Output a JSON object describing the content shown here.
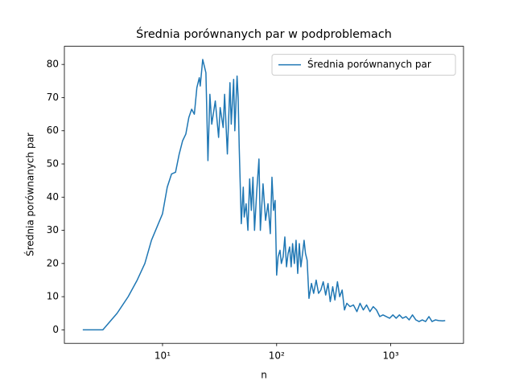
{
  "chart_data": {
    "type": "line",
    "title": "Średnia porównanych par w podproblemach",
    "x_label": "n",
    "y_label": "Średnia porównanych par",
    "x": [
      2,
      3,
      4,
      5,
      6,
      7,
      8,
      10,
      11,
      12,
      13,
      14,
      15,
      16,
      17,
      18,
      19,
      20,
      21,
      21.4,
      22.5,
      24,
      25,
      26,
      27,
      29,
      31,
      32,
      34,
      35,
      37,
      39,
      40,
      42,
      43,
      45,
      46,
      47,
      49,
      51,
      52,
      54,
      56,
      58,
      60,
      62,
      64,
      67,
      70,
      72,
      76,
      80,
      84,
      88,
      91,
      94,
      97,
      100,
      103,
      107,
      110,
      114,
      118,
      122,
      126,
      130,
      134,
      138,
      143,
      148,
      153,
      158,
      163,
      168,
      174,
      179,
      185,
      192,
      202,
      211,
      222,
      233,
      244,
      256,
      269,
      282,
      295,
      310,
      324,
      341,
      357,
      375,
      393,
      412,
      440,
      471,
      505,
      538,
      575,
      614,
      657,
      702,
      750,
      801,
      855,
      915,
      977,
      1044,
      1115,
      1191,
      1270,
      1360,
      1450,
      1550,
      1660,
      1770,
      1890,
      2020,
      2160,
      2300,
      2460,
      2630,
      2850,
      3000
    ],
    "series": [
      {
        "name": "Średnia porównanych par",
        "color": "#1f77b4",
        "values": [
          0,
          0,
          5,
          10,
          15,
          20,
          27,
          35,
          43,
          47,
          47.5,
          53,
          57,
          59,
          64,
          66.5,
          65,
          73,
          76,
          73.5,
          81.5,
          77.5,
          51,
          71,
          62,
          69,
          58,
          67,
          61,
          71,
          53,
          74.5,
          62,
          75.5,
          60,
          76.5,
          70,
          55,
          32,
          43,
          34,
          38,
          30,
          45.5,
          36,
          46,
          30,
          42,
          51.5,
          30,
          44,
          33,
          38,
          29,
          46,
          36,
          39,
          16.5,
          22,
          24,
          20,
          22,
          28,
          19,
          23,
          25,
          19,
          26,
          20,
          27,
          17,
          26,
          19,
          22.5,
          27,
          23,
          21,
          9.5,
          14,
          11,
          15,
          11,
          12,
          14.5,
          10.5,
          14,
          8.5,
          13,
          9,
          14.5,
          10,
          12,
          6,
          8,
          7,
          7.5,
          5.5,
          8,
          6,
          7.5,
          5.5,
          7,
          6,
          4,
          4.5,
          4,
          3.5,
          4.5,
          3.5,
          4.5,
          3.5,
          4,
          3,
          4.5,
          3,
          2.5,
          3,
          2.5,
          4,
          2.5,
          3,
          2.8,
          2.7,
          2.8
        ]
      }
    ],
    "log_x": true,
    "xlim": [
      1.38,
      4340
    ],
    "xticks": [
      {
        "value": 10,
        "label": "10¹"
      },
      {
        "value": 100,
        "label": "10²"
      },
      {
        "value": 1000,
        "label": "10³"
      }
    ],
    "ylim": [
      -4.07,
      85.47
    ],
    "yticks": [
      0,
      10,
      20,
      30,
      40,
      50,
      60,
      70,
      80
    ],
    "legend": "upper right"
  }
}
